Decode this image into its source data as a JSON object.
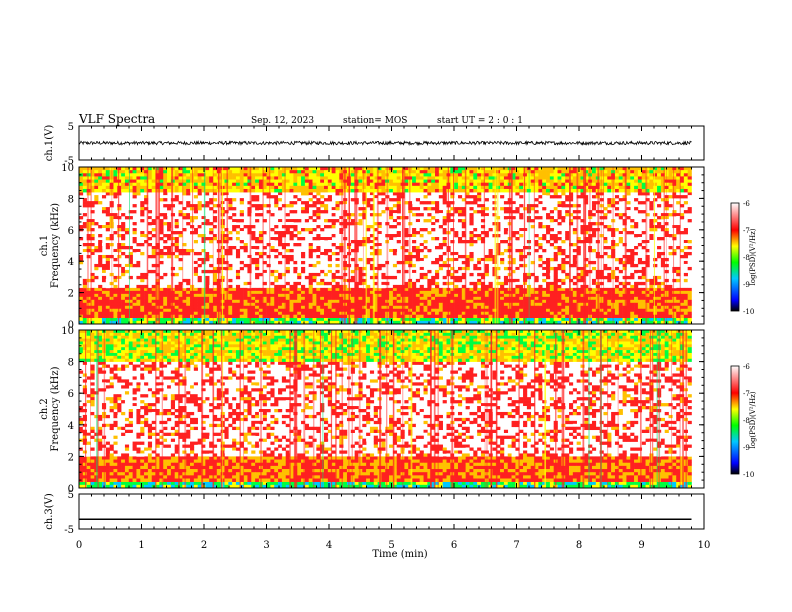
{
  "header": {
    "title": "VLF Spectra",
    "date": "Sep. 12, 2023",
    "station": "station= MOS",
    "start": "start  UT =   2 : 0  : 1"
  },
  "chart_data": [
    {
      "type": "line",
      "panel": "ch1-waveform",
      "ylabel": "ch.1(V)",
      "ylim": [
        -5,
        5
      ],
      "yticks": [
        "5",
        "-5"
      ],
      "x": [
        0,
        9.8
      ],
      "values": [
        0,
        0
      ],
      "note_series": "noisy trace near 0 V"
    },
    {
      "type": "heatmap",
      "panel": "ch1-spectrogram",
      "ylabel": "ch.1\nFrequency (kHz)",
      "ylim": [
        0,
        10
      ],
      "yticks": [
        "0",
        "2",
        "4",
        "6",
        "8",
        "10"
      ],
      "xlim": [
        0,
        10
      ],
      "data_end_min": 9.8,
      "colorbar": {
        "label": "log(PSD)(V²/Hz)",
        "ticks": [
          "-6",
          "-7",
          "-8",
          "-9",
          "-10"
        ],
        "range": [
          -10,
          -6
        ]
      },
      "bands": [
        {
          "from_khz": 0,
          "to_khz": 0.4,
          "log_psd": -8.5
        },
        {
          "from_khz": 0.4,
          "to_khz": 2.3,
          "log_psd": -7.2
        },
        {
          "from_khz": 2.3,
          "to_khz": 8.4,
          "log_psd": -7.0
        },
        {
          "from_khz": 8.4,
          "to_khz": 10,
          "log_psd": -7.8
        }
      ]
    },
    {
      "type": "heatmap",
      "panel": "ch2-spectrogram",
      "ylabel": "ch.2\nFrequency (kHz)",
      "ylim": [
        0,
        10
      ],
      "yticks": [
        "0",
        "2",
        "4",
        "6",
        "8",
        "10"
      ],
      "xlim": [
        0,
        10
      ],
      "data_end_min": 9.8,
      "colorbar": {
        "label": "log(PSD)(V²/Hz)",
        "ticks": [
          "-6",
          "-7",
          "-8",
          "-9",
          "-10"
        ],
        "range": [
          -10,
          -6
        ]
      },
      "bands": [
        {
          "from_khz": 0,
          "to_khz": 0.4,
          "log_psd": -8.6
        },
        {
          "from_khz": 0.4,
          "to_khz": 2.0,
          "log_psd": -7.3
        },
        {
          "from_khz": 2.0,
          "to_khz": 8.0,
          "log_psd": -7.0
        },
        {
          "from_khz": 8.0,
          "to_khz": 10,
          "log_psd": -8.0
        }
      ]
    },
    {
      "type": "line",
      "panel": "ch3-waveform",
      "ylabel": "ch.3(V)",
      "ylim": [
        -5,
        5
      ],
      "yticks": [
        "5",
        "-5"
      ],
      "x": [
        0,
        9.8
      ],
      "values": [
        -2.2,
        -2.2
      ]
    }
  ],
  "xaxis": {
    "label": "Time  (min)",
    "ticks": [
      "0",
      "1",
      "2",
      "3",
      "4",
      "5",
      "6",
      "7",
      "8",
      "9",
      "10"
    ],
    "range": [
      0,
      10
    ]
  },
  "colors": {
    "trace": "#000000",
    "cmap": [
      "#000000",
      "#0000ff",
      "#00ff00",
      "#ffff00",
      "#ff0000",
      "#ffffff"
    ]
  }
}
